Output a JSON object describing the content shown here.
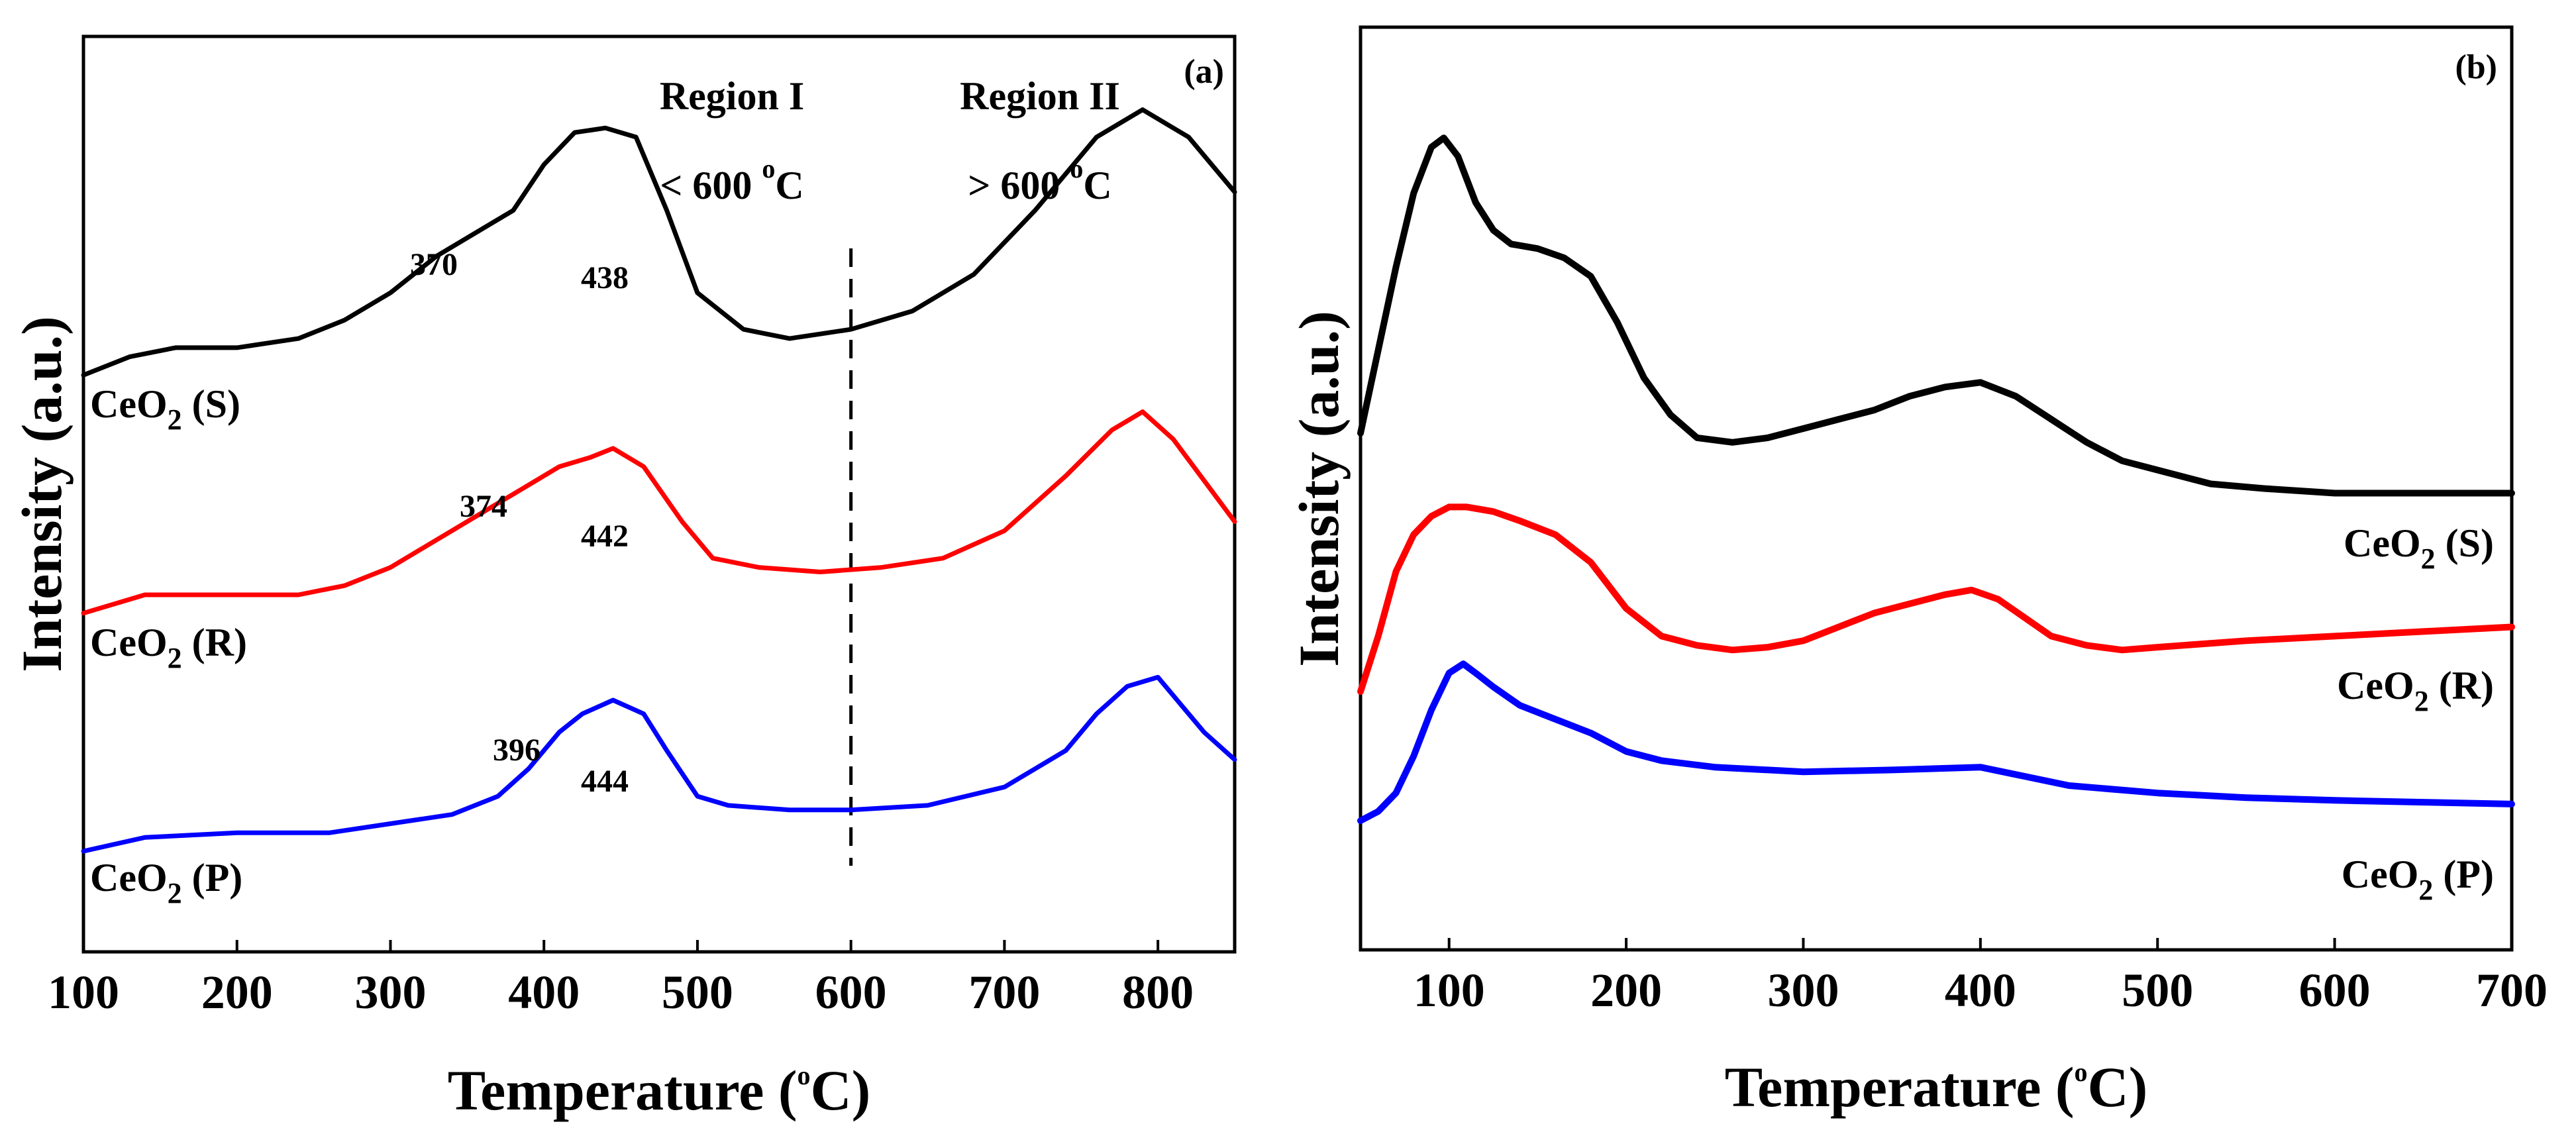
{
  "chart_data": [
    {
      "panel": "a",
      "type": "line",
      "panel_label": "(a)",
      "xlabel": "Temperature (oC)",
      "xlabel_parts": {
        "main": "Temperature (",
        "sup": "o",
        "end": "C)"
      },
      "ylabel": "Intensity (a.u.)",
      "xlim": [
        100,
        850
      ],
      "ylim": [
        0,
        1
      ],
      "xticks": [
        100,
        200,
        300,
        400,
        500,
        600,
        700,
        800
      ],
      "divider_x": 600,
      "regions": [
        {
          "name": "Region I",
          "range_main": "< 600 ",
          "sup": "o",
          "end": "C"
        },
        {
          "name": "Region II",
          "range_main": "> 600 ",
          "sup": "o",
          "end": "C"
        }
      ],
      "series": [
        {
          "name": "CeO2 (S)",
          "label_main": "CeO",
          "label_sub": "2",
          "label_end": " (S)",
          "color": "#000000",
          "peaks": [
            "370",
            "438"
          ],
          "x": [
            100,
            130,
            160,
            200,
            240,
            270,
            300,
            330,
            360,
            380,
            400,
            420,
            440,
            460,
            480,
            500,
            530,
            560,
            600,
            640,
            680,
            720,
            760,
            790,
            820,
            850
          ],
          "y": [
            0.63,
            0.65,
            0.66,
            0.66,
            0.67,
            0.69,
            0.72,
            0.76,
            0.79,
            0.81,
            0.86,
            0.895,
            0.9,
            0.89,
            0.81,
            0.72,
            0.68,
            0.67,
            0.68,
            0.7,
            0.74,
            0.81,
            0.89,
            0.92,
            0.89,
            0.83
          ]
        },
        {
          "name": "CeO2 (R)",
          "label_main": "CeO",
          "label_sub": "2",
          "label_end": " (R)",
          "color": "#ff0000",
          "peaks": [
            "374",
            "442"
          ],
          "x": [
            100,
            140,
            200,
            240,
            270,
            300,
            330,
            360,
            390,
            410,
            430,
            445,
            465,
            490,
            510,
            540,
            580,
            620,
            660,
            700,
            740,
            770,
            790,
            810,
            850
          ],
          "y": [
            0.37,
            0.39,
            0.39,
            0.39,
            0.4,
            0.42,
            0.45,
            0.48,
            0.51,
            0.53,
            0.54,
            0.55,
            0.53,
            0.47,
            0.43,
            0.42,
            0.415,
            0.42,
            0.43,
            0.46,
            0.52,
            0.57,
            0.59,
            0.56,
            0.47
          ]
        },
        {
          "name": "CeO2 (P)",
          "label_main": "CeO",
          "label_sub": "2",
          "label_end": " (P)",
          "color": "#0000ff",
          "peaks": [
            "396",
            "444"
          ],
          "x": [
            100,
            140,
            200,
            260,
            300,
            340,
            370,
            390,
            410,
            425,
            445,
            465,
            480,
            500,
            520,
            560,
            600,
            650,
            700,
            740,
            760,
            780,
            800,
            830,
            850
          ],
          "y": [
            0.11,
            0.125,
            0.13,
            0.13,
            0.14,
            0.15,
            0.17,
            0.2,
            0.24,
            0.26,
            0.275,
            0.26,
            0.22,
            0.17,
            0.16,
            0.155,
            0.155,
            0.16,
            0.18,
            0.22,
            0.26,
            0.29,
            0.3,
            0.24,
            0.21
          ]
        }
      ]
    },
    {
      "panel": "b",
      "type": "line",
      "panel_label": "(b)",
      "xlabel": "Temperature (oC)",
      "xlabel_parts": {
        "main": "Temperature (",
        "sup": "o",
        "end": "C)"
      },
      "ylabel": "Intensity (a.u.)",
      "xlim": [
        50,
        700
      ],
      "ylim": [
        0,
        1
      ],
      "xticks": [
        100,
        200,
        300,
        400,
        500,
        600,
        700
      ],
      "series": [
        {
          "name": "CeO2 (S)",
          "label_main": "CeO",
          "label_sub": "2",
          "label_end": " (S)",
          "color": "#000000",
          "x": [
            50,
            60,
            70,
            80,
            90,
            97,
            105,
            115,
            125,
            135,
            150,
            165,
            180,
            195,
            210,
            225,
            240,
            260,
            280,
            300,
            320,
            340,
            360,
            380,
            400,
            420,
            440,
            460,
            480,
            500,
            530,
            560,
            600,
            650,
            700
          ],
          "y": [
            0.56,
            0.65,
            0.74,
            0.82,
            0.87,
            0.88,
            0.86,
            0.81,
            0.78,
            0.765,
            0.76,
            0.75,
            0.73,
            0.68,
            0.62,
            0.58,
            0.555,
            0.55,
            0.555,
            0.565,
            0.575,
            0.585,
            0.6,
            0.61,
            0.615,
            0.6,
            0.575,
            0.55,
            0.53,
            0.52,
            0.505,
            0.5,
            0.495,
            0.495,
            0.495
          ]
        },
        {
          "name": "CeO2 (R)",
          "label_main": "CeO",
          "label_sub": "2",
          "label_end": " (R)",
          "color": "#ff0000",
          "x": [
            50,
            60,
            70,
            80,
            90,
            100,
            110,
            125,
            140,
            160,
            180,
            200,
            220,
            240,
            260,
            280,
            300,
            320,
            340,
            360,
            380,
            395,
            410,
            425,
            440,
            460,
            480,
            500,
            550,
            600,
            650,
            700
          ],
          "y": [
            0.28,
            0.34,
            0.41,
            0.45,
            0.47,
            0.48,
            0.48,
            0.475,
            0.465,
            0.45,
            0.42,
            0.37,
            0.34,
            0.33,
            0.325,
            0.328,
            0.335,
            0.35,
            0.365,
            0.375,
            0.385,
            0.39,
            0.38,
            0.36,
            0.34,
            0.33,
            0.325,
            0.328,
            0.335,
            0.34,
            0.345,
            0.35
          ]
        },
        {
          "name": "CeO2 (P)",
          "label_main": "CeO",
          "label_sub": "2",
          "label_end": " (P)",
          "color": "#0000ff",
          "x": [
            50,
            60,
            70,
            80,
            90,
            100,
            108,
            115,
            125,
            140,
            160,
            180,
            200,
            220,
            250,
            300,
            350,
            400,
            420,
            450,
            500,
            550,
            600,
            650,
            700
          ],
          "y": [
            0.14,
            0.15,
            0.17,
            0.21,
            0.26,
            0.3,
            0.31,
            0.3,
            0.285,
            0.265,
            0.25,
            0.235,
            0.215,
            0.205,
            0.198,
            0.193,
            0.195,
            0.198,
            0.19,
            0.178,
            0.17,
            0.165,
            0.162,
            0.16,
            0.158
          ]
        }
      ]
    }
  ]
}
